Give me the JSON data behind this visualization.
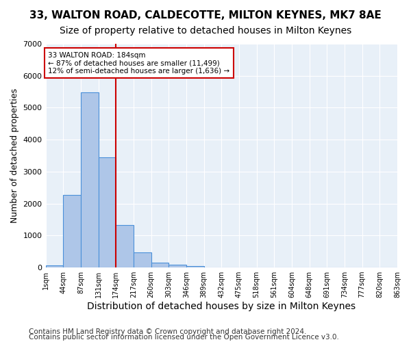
{
  "title1": "33, WALTON ROAD, CALDECOTTE, MILTON KEYNES, MK7 8AE",
  "title2": "Size of property relative to detached houses in Milton Keynes",
  "xlabel": "Distribution of detached houses by size in Milton Keynes",
  "ylabel": "Number of detached properties",
  "footer1": "Contains HM Land Registry data © Crown copyright and database right 2024.",
  "footer2": "Contains public sector information licensed under the Open Government Licence v3.0.",
  "bin_labels": [
    "1sqm",
    "44sqm",
    "87sqm",
    "131sqm",
    "174sqm",
    "217sqm",
    "260sqm",
    "303sqm",
    "346sqm",
    "389sqm",
    "432sqm",
    "475sqm",
    "518sqm",
    "561sqm",
    "604sqm",
    "648sqm",
    "691sqm",
    "734sqm",
    "777sqm",
    "820sqm",
    "863sqm"
  ],
  "bar_values": [
    75,
    2280,
    5480,
    3450,
    1320,
    470,
    160,
    90,
    55,
    0,
    0,
    0,
    0,
    0,
    0,
    0,
    0,
    0,
    0,
    0
  ],
  "bar_color": "#aec6e8",
  "bar_edge_color": "#4a90d9",
  "reference_line_x": 4,
  "reference_line_color": "#cc0000",
  "annotation_text": "33 WALTON ROAD: 184sqm\n← 87% of detached houses are smaller (11,499)\n12% of semi-detached houses are larger (1,636) →",
  "annotation_box_color": "#ffffff",
  "annotation_box_edge_color": "#cc0000",
  "ylim": [
    0,
    7000
  ],
  "yticks": [
    0,
    1000,
    2000,
    3000,
    4000,
    5000,
    6000,
    7000
  ],
  "plot_bg_color": "#e8f0f8",
  "title1_fontsize": 11,
  "title2_fontsize": 10,
  "xlabel_fontsize": 10,
  "ylabel_fontsize": 9,
  "footer_fontsize": 7.5
}
